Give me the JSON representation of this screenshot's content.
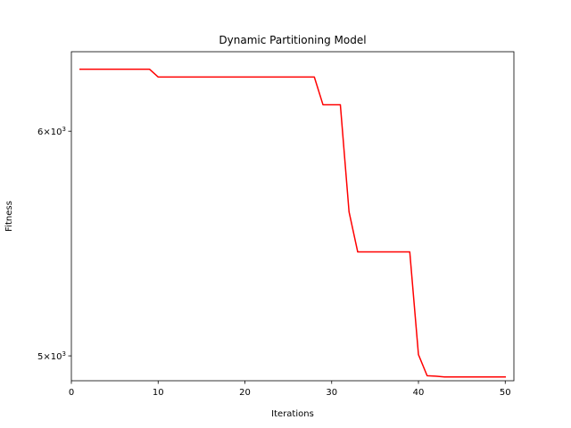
{
  "chart_data": {
    "type": "line",
    "title": "Dynamic Partitioning Model",
    "xlabel": "Iterations",
    "ylabel": "Fitness",
    "xlim": [
      0,
      51
    ],
    "ylim": [
      4900,
      6400
    ],
    "yscale": "log",
    "grid": false,
    "x_ticks": [
      0,
      10,
      20,
      30,
      40,
      50
    ],
    "y_ticks": [
      {
        "value": 5000,
        "mantissa": "5",
        "base": "10",
        "exp": "3"
      },
      {
        "value": 6000,
        "mantissa": "6",
        "base": "10",
        "exp": "3"
      }
    ],
    "series": [
      {
        "color": "#ff0000",
        "x": [
          1,
          2,
          3,
          4,
          5,
          6,
          7,
          8,
          9,
          10,
          11,
          12,
          13,
          14,
          15,
          16,
          17,
          18,
          19,
          20,
          21,
          22,
          23,
          24,
          25,
          26,
          27,
          28,
          29,
          30,
          31,
          32,
          33,
          34,
          35,
          36,
          37,
          38,
          39,
          40,
          41,
          42,
          43,
          44,
          45,
          46,
          47,
          48,
          49,
          50
        ],
        "y": [
          6310,
          6310,
          6310,
          6310,
          6310,
          6310,
          6310,
          6310,
          6310,
          6270,
          6270,
          6270,
          6270,
          6270,
          6270,
          6270,
          6270,
          6270,
          6270,
          6270,
          6270,
          6270,
          6270,
          6270,
          6270,
          6270,
          6270,
          6270,
          6130,
          6130,
          6130,
          5620,
          5440,
          5440,
          5440,
          5440,
          5440,
          5440,
          5440,
          5005,
          4920,
          4918,
          4915,
          4915,
          4915,
          4915,
          4915,
          4915,
          4915,
          4915
        ]
      }
    ]
  }
}
